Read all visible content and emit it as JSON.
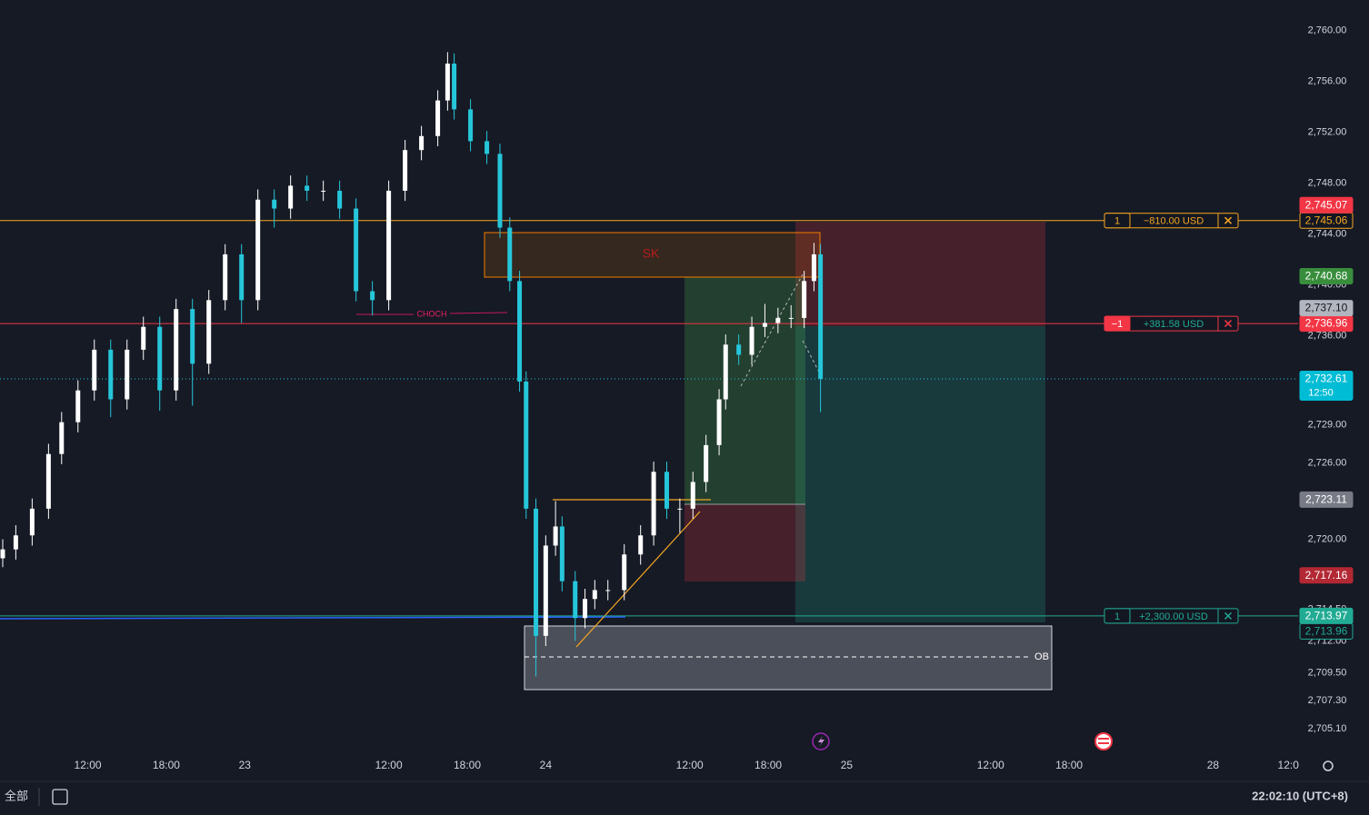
{
  "chart_data": {
    "type": "candlestick",
    "x": [
      0,
      4,
      9,
      14,
      18,
      23,
      28,
      33,
      38,
      43,
      48,
      53,
      58,
      63,
      68,
      73,
      78,
      83,
      88,
      93,
      98,
      103,
      108,
      113,
      118,
      123,
      128,
      133,
      136,
      138,
      143,
      148,
      152,
      155,
      158,
      160,
      163,
      166,
      169,
      171,
      175,
      178,
      181,
      185,
      190,
      195,
      199,
      203,
      207,
      211,
      215,
      219,
      221,
      225,
      229,
      233,
      237,
      241,
      245,
      248,
      250
    ],
    "open": [
      2718.5,
      2719.2,
      2720.3,
      2722.4,
      2726.7,
      2729.2,
      2731.7,
      2734.9,
      2731.0,
      2734.9,
      2736.7,
      2731.7,
      2738.1,
      2733.8,
      2738.8,
      2742.4,
      2738.8,
      2746.7,
      2746.0,
      2747.8,
      2747.4,
      2747.4,
      2746.0,
      2739.5,
      2738.8,
      2747.4,
      2750.6,
      2751.7,
      2754.5,
      2757.4,
      2753.8,
      2751.3,
      2750.3,
      2744.5,
      2740.3,
      2732.4,
      2722.4,
      2712.4,
      2719.5,
      2721.0,
      2716.7,
      2713.8,
      2715.3,
      2716.0,
      2716.0,
      2718.8,
      2720.3,
      2725.3,
      2722.4,
      2722.4,
      2724.5,
      2727.4,
      2731.0,
      2735.3,
      2734.5,
      2736.7,
      2737.0,
      2737.4,
      2737.4,
      2740.3,
      2742.4
    ],
    "high": [
      2720.0,
      2721.1,
      2723.2,
      2727.5,
      2730.0,
      2732.5,
      2735.7,
      2735.7,
      2735.7,
      2737.5,
      2737.5,
      2738.9,
      2738.9,
      2739.6,
      2743.2,
      2743.2,
      2747.5,
      2747.5,
      2748.6,
      2748.6,
      2748.2,
      2748.2,
      2746.8,
      2740.3,
      2748.2,
      2751.4,
      2752.5,
      2755.3,
      2758.3,
      2758.2,
      2754.6,
      2752.1,
      2751.1,
      2745.3,
      2741.1,
      2733.2,
      2723.2,
      2720.3,
      2723.0,
      2721.8,
      2717.5,
      2716.1,
      2716.8,
      2716.8,
      2719.6,
      2721.1,
      2726.1,
      2726.1,
      2723.2,
      2725.3,
      2728.2,
      2731.8,
      2736.1,
      2736.1,
      2737.5,
      2738.5,
      2738.2,
      2738.4,
      2741.1,
      2743.3,
      2743.2
    ],
    "low": [
      2717.8,
      2718.4,
      2719.5,
      2721.6,
      2725.9,
      2728.4,
      2730.9,
      2729.6,
      2730.2,
      2734.1,
      2730.1,
      2730.9,
      2730.5,
      2733.0,
      2738.0,
      2737.0,
      2738.0,
      2744.5,
      2745.2,
      2746.6,
      2746.6,
      2745.2,
      2738.7,
      2737.6,
      2738.0,
      2746.6,
      2749.8,
      2750.9,
      2753.7,
      2753.0,
      2750.5,
      2749.5,
      2743.7,
      2739.5,
      2731.6,
      2721.6,
      2709.2,
      2711.6,
      2718.7,
      2715.9,
      2712.0,
      2713.0,
      2714.5,
      2715.2,
      2715.2,
      2718.0,
      2719.5,
      2721.6,
      2720.5,
      2721.6,
      2723.7,
      2726.6,
      2730.2,
      2733.7,
      2733.7,
      2735.9,
      2736.2,
      2736.6,
      2736.6,
      2739.5,
      2730.0
    ],
    "close": [
      2719.2,
      2720.3,
      2722.4,
      2726.7,
      2729.2,
      2731.7,
      2734.9,
      2731.0,
      2734.9,
      2736.7,
      2731.7,
      2738.1,
      2733.8,
      2738.8,
      2742.4,
      2738.8,
      2746.7,
      2746.0,
      2747.8,
      2747.4,
      2747.4,
      2746.0,
      2739.5,
      2738.8,
      2747.4,
      2750.6,
      2751.7,
      2754.5,
      2757.4,
      2753.8,
      2751.3,
      2750.3,
      2744.5,
      2740.3,
      2732.4,
      2722.4,
      2712.4,
      2719.5,
      2721.0,
      2716.7,
      2713.8,
      2715.3,
      2716.0,
      2716.0,
      2718.8,
      2720.3,
      2725.3,
      2722.4,
      2722.4,
      2724.5,
      2727.4,
      2731.0,
      2735.3,
      2734.5,
      2736.7,
      2737.0,
      2737.4,
      2737.4,
      2740.3,
      2742.4,
      2732.61
    ],
    "up_color": "#ffffff",
    "down_color": "#26c6da",
    "xlim": [
      0,
      396
    ],
    "xticks": [
      {
        "value": 26,
        "label": "12:00"
      },
      {
        "value": 50,
        "label": "18:00"
      },
      {
        "value": 74,
        "label": "23"
      },
      {
        "value": 118,
        "label": "12:00"
      },
      {
        "value": 142,
        "label": "18:00"
      },
      {
        "value": 166,
        "label": "24"
      },
      {
        "value": 210,
        "label": "12:00"
      },
      {
        "value": 234,
        "label": "18:00"
      },
      {
        "value": 258,
        "label": "25"
      },
      {
        "value": 302,
        "label": "12:00"
      },
      {
        "value": 326,
        "label": "18:00"
      },
      {
        "value": 370,
        "label": "28"
      },
      {
        "value": 393,
        "label": "12:0"
      }
    ],
    "ylim": [
      2703.1,
      2762.4
    ],
    "yticks": [
      {
        "value": 2705.1,
        "label": "2,705.10"
      },
      {
        "value": 2707.3,
        "label": "2,707.30"
      },
      {
        "value": 2709.5,
        "label": "2,709.50"
      },
      {
        "value": 2712,
        "label": "2,712.00"
      },
      {
        "value": 2714.5,
        "label": "2,714.50"
      },
      {
        "value": 2720,
        "label": "2,720.00"
      },
      {
        "value": 2726,
        "label": "2,726.00"
      },
      {
        "value": 2729,
        "label": "2,729.00"
      },
      {
        "value": 2736,
        "label": "2,736.00"
      },
      {
        "value": 2740,
        "label": "2,740.00"
      },
      {
        "value": 2744,
        "label": "2,744.00"
      },
      {
        "value": 2748,
        "label": "2,748.00"
      },
      {
        "value": 2752,
        "label": "2,752.00"
      },
      {
        "value": 2756,
        "label": "2,756.00"
      },
      {
        "value": 2760,
        "label": "2,760.00"
      }
    ],
    "price_tags": [
      {
        "value": 2745.06,
        "label": "2,745.06",
        "bg": "#131722",
        "fg": "#f5a623",
        "border": "#f5a623"
      },
      {
        "value": 2745.07,
        "label": "2,745.07",
        "bg": "#f23645",
        "fg": "#ffffff",
        "border": "#f23645"
      },
      {
        "value": 2740.68,
        "label": "2,740.68",
        "bg": "#388e3c",
        "fg": "#ffffff",
        "border": "#388e3c"
      },
      {
        "value": 2736.96,
        "label": "2,736.96",
        "bg": "#f23645",
        "fg": "#ffffff",
        "border": "#f23645"
      },
      {
        "value": 2737.1,
        "label": "2,737.10",
        "bg": "#b2b5be",
        "fg": "#131722",
        "border": "#b2b5be"
      },
      {
        "value": 2732.61,
        "label": "2,732.61",
        "sub": "12:50",
        "bg": "#00bcd4",
        "fg": "#ffffff",
        "border": "#00bcd4"
      },
      {
        "value": 2723.11,
        "label": "2,723.11",
        "bg": "#787b86",
        "fg": "#ffffff",
        "border": "#787b86"
      },
      {
        "value": 2717.16,
        "label": "2,717.16",
        "bg": "#b22833",
        "fg": "#ffffff",
        "border": "#b22833"
      },
      {
        "value": 2713.97,
        "label": "2,713.97",
        "bg": "#22ab94",
        "fg": "#ffffff",
        "border": "#22ab94"
      },
      {
        "value": 2713.96,
        "label": "2,713.96",
        "bg": "#131722",
        "fg": "#22ab94",
        "border": "#22ab94"
      }
    ],
    "orders": [
      {
        "qty": "1",
        "pnl": "−810.00 USD",
        "price": 2745.06,
        "color": "#f5a623",
        "pnl_color": "#f5a623"
      },
      {
        "qty": "−1",
        "pnl": "+381.58 USD",
        "price": 2736.96,
        "color": "#f23645",
        "pnl_color": "#22ab94"
      },
      {
        "qty": "1",
        "pnl": "+2,300.00 USD",
        "price": 2713.97,
        "color": "#22ab94",
        "pnl_color": "#22ab94"
      }
    ],
    "annotations": {
      "sk": "SK",
      "choch": "CHOCH",
      "ob": "OB"
    }
  },
  "toolbar": {
    "range": "全部",
    "clock": "22:02:10 (UTC+8)"
  }
}
